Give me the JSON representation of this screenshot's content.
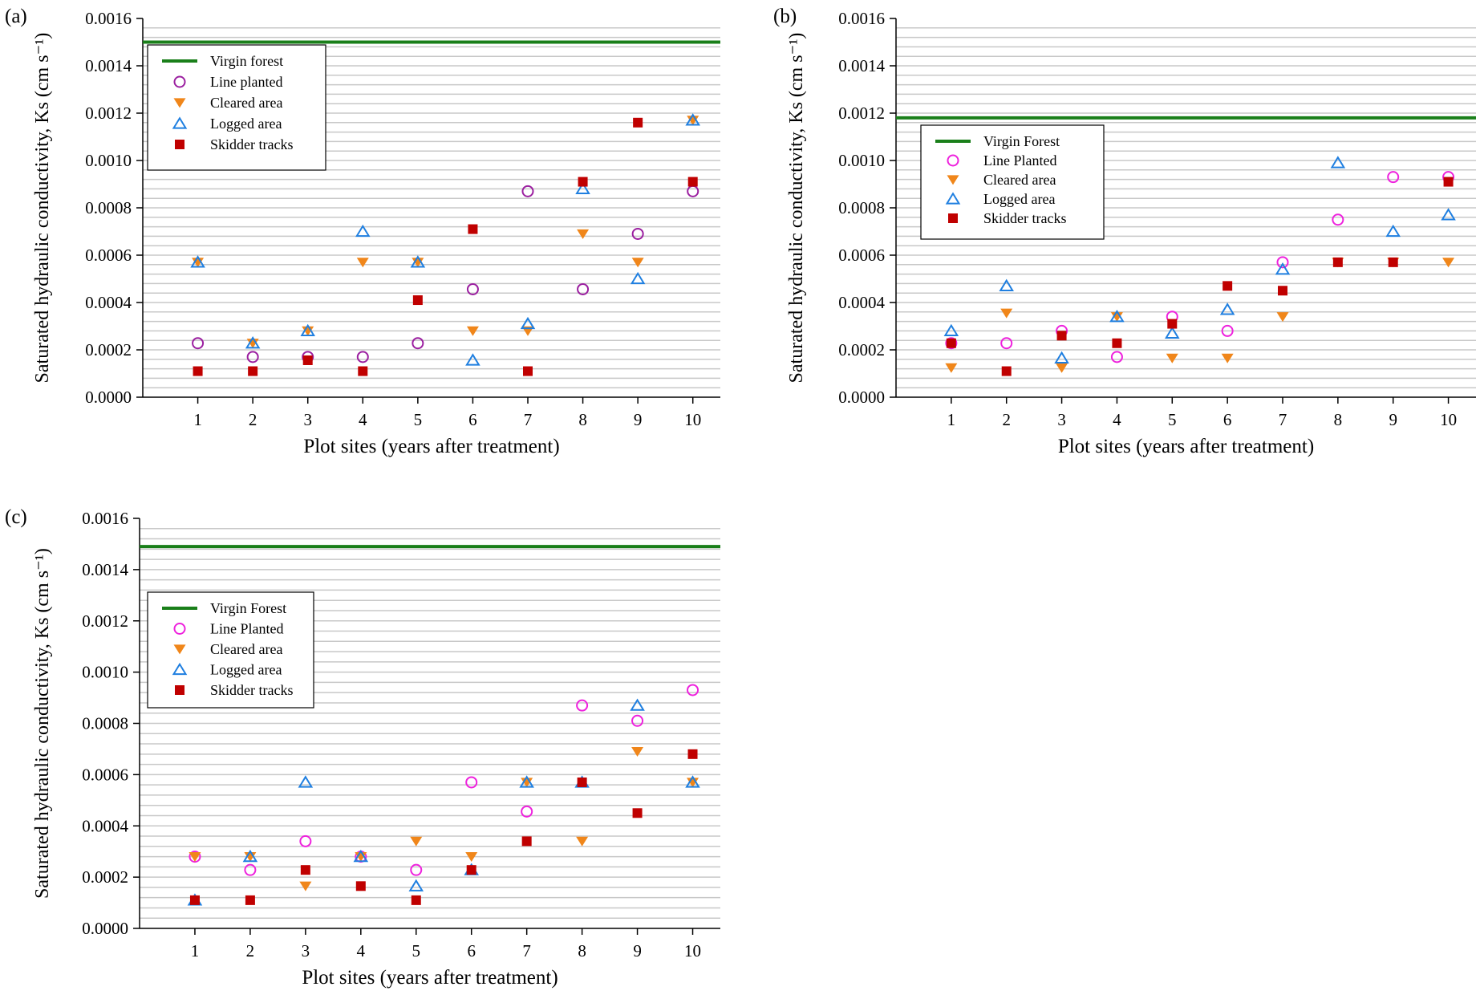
{
  "legend_panel_a": [
    "Virgin forest",
    "Line planted",
    "Cleared area",
    "Logged area",
    "Skidder tracks"
  ],
  "legend_panel_bc": [
    "Virgin Forest",
    "Line Planted",
    "Cleared area",
    "Logged area",
    "Skidder tracks"
  ],
  "series_colors": {
    "virgin": "#1a7f1a",
    "line_a": "#9b1fa0",
    "line_bc": "#ee22dd",
    "cleared": "#f0861a",
    "logged": "#1f7fe0",
    "skidder": "#c00000"
  },
  "chart_data": [
    {
      "type": "scatter",
      "panel": "(a)",
      "xlabel": "Plot sites (years after treatment)",
      "ylabel": "Saturated hydraulic conductivity, Ks (cm s⁻¹)",
      "ylim": [
        0,
        0.0016
      ],
      "xlim": [
        0,
        10.5
      ],
      "x_ticks": [
        "1",
        "2",
        "3",
        "4",
        "5",
        "6",
        "7",
        "8",
        "9",
        "10"
      ],
      "y_ticks": [
        "0.0000",
        "0.0002",
        "0.0004",
        "0.0006",
        "0.0008",
        "0.0010",
        "0.0012",
        "0.0014",
        "0.0016"
      ],
      "reference_line": {
        "name": "Virgin forest",
        "value": 0.0015
      },
      "series": [
        {
          "name": "Line planted",
          "key": "line_a",
          "marker": "circle",
          "x": [
            1,
            2,
            3,
            4,
            5,
            6,
            7,
            8,
            9,
            10
          ],
          "values": [
            0.000228,
            0.00017,
            0.00017,
            0.00017,
            0.000228,
            0.000456,
            0.00087,
            0.000456,
            0.00069,
            0.00087
          ]
        },
        {
          "name": "Cleared area",
          "key": "cleared",
          "marker": "triangle-down",
          "x": [
            1,
            2,
            3,
            4,
            5,
            6,
            7,
            8,
            9,
            10
          ],
          "values": [
            0.00057,
            0.000228,
            0.00028,
            0.00057,
            0.00057,
            0.00028,
            0.00028,
            0.00069,
            0.00057,
            0.00117
          ]
        },
        {
          "name": "Logged area",
          "key": "logged",
          "marker": "triangle-up",
          "x": [
            1,
            2,
            3,
            4,
            5,
            6,
            7,
            8,
            9,
            10
          ],
          "values": [
            0.00057,
            0.000228,
            0.00028,
            0.0007,
            0.00057,
            0.000156,
            0.00031,
            0.00088,
            0.0005,
            0.00117
          ]
        },
        {
          "name": "Skidder tracks",
          "key": "skidder",
          "marker": "square",
          "x": [
            1,
            2,
            3,
            4,
            5,
            6,
            7,
            8,
            9,
            10
          ],
          "values": [
            0.00011,
            0.00011,
            0.000156,
            0.00011,
            0.00041,
            0.00071,
            0.00011,
            0.00091,
            0.00116,
            0.00091
          ]
        }
      ]
    },
    {
      "type": "scatter",
      "panel": "(b)",
      "xlabel": "Plot sites (years after treatment)",
      "ylabel": "Saturated hydraulic conductivity, Ks (cm s⁻¹)",
      "ylim": [
        0,
        0.0016
      ],
      "xlim": [
        0,
        10.5
      ],
      "x_ticks": [
        "1",
        "2",
        "3",
        "4",
        "5",
        "6",
        "7",
        "8",
        "9",
        "10"
      ],
      "y_ticks": [
        "0.0000",
        "0.0002",
        "0.0004",
        "0.0006",
        "0.0008",
        "0.0010",
        "0.0012",
        "0.0014",
        "0.0016"
      ],
      "reference_line": {
        "name": "Virgin Forest",
        "value": 0.00118
      },
      "series": [
        {
          "name": "Line Planted",
          "key": "line_bc",
          "marker": "circle",
          "x": [
            1,
            2,
            3,
            4,
            5,
            6,
            7,
            8,
            9,
            10
          ],
          "values": [
            0.000228,
            0.000228,
            0.00028,
            0.00017,
            0.00034,
            0.00028,
            0.00057,
            0.00075,
            0.00093,
            0.00093
          ]
        },
        {
          "name": "Cleared area",
          "key": "cleared",
          "marker": "triangle-down",
          "x": [
            1,
            2,
            3,
            4,
            5,
            6,
            7,
            8,
            9,
            10
          ],
          "values": [
            0.000124,
            0.000355,
            0.000124,
            0.00034,
            0.000165,
            0.000165,
            0.00034,
            0.00057,
            0.00057,
            0.00057
          ]
        },
        {
          "name": "Logged area",
          "key": "logged",
          "marker": "triangle-up",
          "x": [
            1,
            2,
            3,
            4,
            5,
            6,
            7,
            8,
            9,
            10
          ],
          "values": [
            0.00028,
            0.00047,
            0.000165,
            0.00034,
            0.00027,
            0.00037,
            0.00054,
            0.00099,
            0.0007,
            0.00077
          ]
        },
        {
          "name": "Skidder tracks",
          "key": "skidder",
          "marker": "square",
          "x": [
            1,
            2,
            3,
            4,
            5,
            6,
            7,
            8,
            9,
            10
          ],
          "values": [
            0.000228,
            0.00011,
            0.00026,
            0.000228,
            0.00031,
            0.00047,
            0.00045,
            0.00057,
            0.00057,
            0.00091
          ]
        }
      ]
    },
    {
      "type": "scatter",
      "panel": "(c)",
      "xlabel": "Plot sites (years after treatment)",
      "ylabel": "Saturated hydraulic conductivity, Ks (cm s⁻¹)",
      "ylim": [
        0,
        0.0016
      ],
      "xlim": [
        0,
        10.5
      ],
      "x_ticks": [
        "1",
        "2",
        "3",
        "4",
        "5",
        "6",
        "7",
        "8",
        "9",
        "10"
      ],
      "y_ticks": [
        "0.0000",
        "0.0002",
        "0.0004",
        "0.0006",
        "0.0008",
        "0.0010",
        "0.0012",
        "0.0014",
        "0.0016"
      ],
      "reference_line": {
        "name": "Virgin Forest",
        "value": 0.00149
      },
      "series": [
        {
          "name": "Line Planted",
          "key": "line_bc",
          "marker": "circle",
          "x": [
            1,
            2,
            3,
            4,
            5,
            6,
            7,
            8,
            9,
            10
          ],
          "values": [
            0.00028,
            0.000228,
            0.00034,
            0.00028,
            0.000228,
            0.00057,
            0.000456,
            0.00087,
            0.00081,
            0.00093
          ]
        },
        {
          "name": "Cleared area",
          "key": "cleared",
          "marker": "triangle-down",
          "x": [
            1,
            2,
            3,
            4,
            5,
            6,
            7,
            8,
            9,
            10
          ],
          "values": [
            0.00028,
            0.00028,
            0.000165,
            0.00028,
            0.00034,
            0.00028,
            0.00057,
            0.00034,
            0.00069,
            0.00057
          ]
        },
        {
          "name": "Logged area",
          "key": "logged",
          "marker": "triangle-up",
          "x": [
            1,
            2,
            3,
            4,
            5,
            6,
            7,
            8,
            9,
            10
          ],
          "values": [
            0.00011,
            0.00028,
            0.00057,
            0.00028,
            0.000165,
            0.000228,
            0.00057,
            0.00057,
            0.00087,
            0.00057
          ]
        },
        {
          "name": "Skidder tracks",
          "key": "skidder",
          "marker": "square",
          "x": [
            1,
            2,
            3,
            4,
            5,
            6,
            7,
            8,
            9,
            10
          ],
          "values": [
            0.00011,
            0.00011,
            0.000228,
            0.000165,
            0.00011,
            0.000228,
            0.00034,
            0.00057,
            0.00045,
            0.00068
          ]
        }
      ]
    }
  ]
}
